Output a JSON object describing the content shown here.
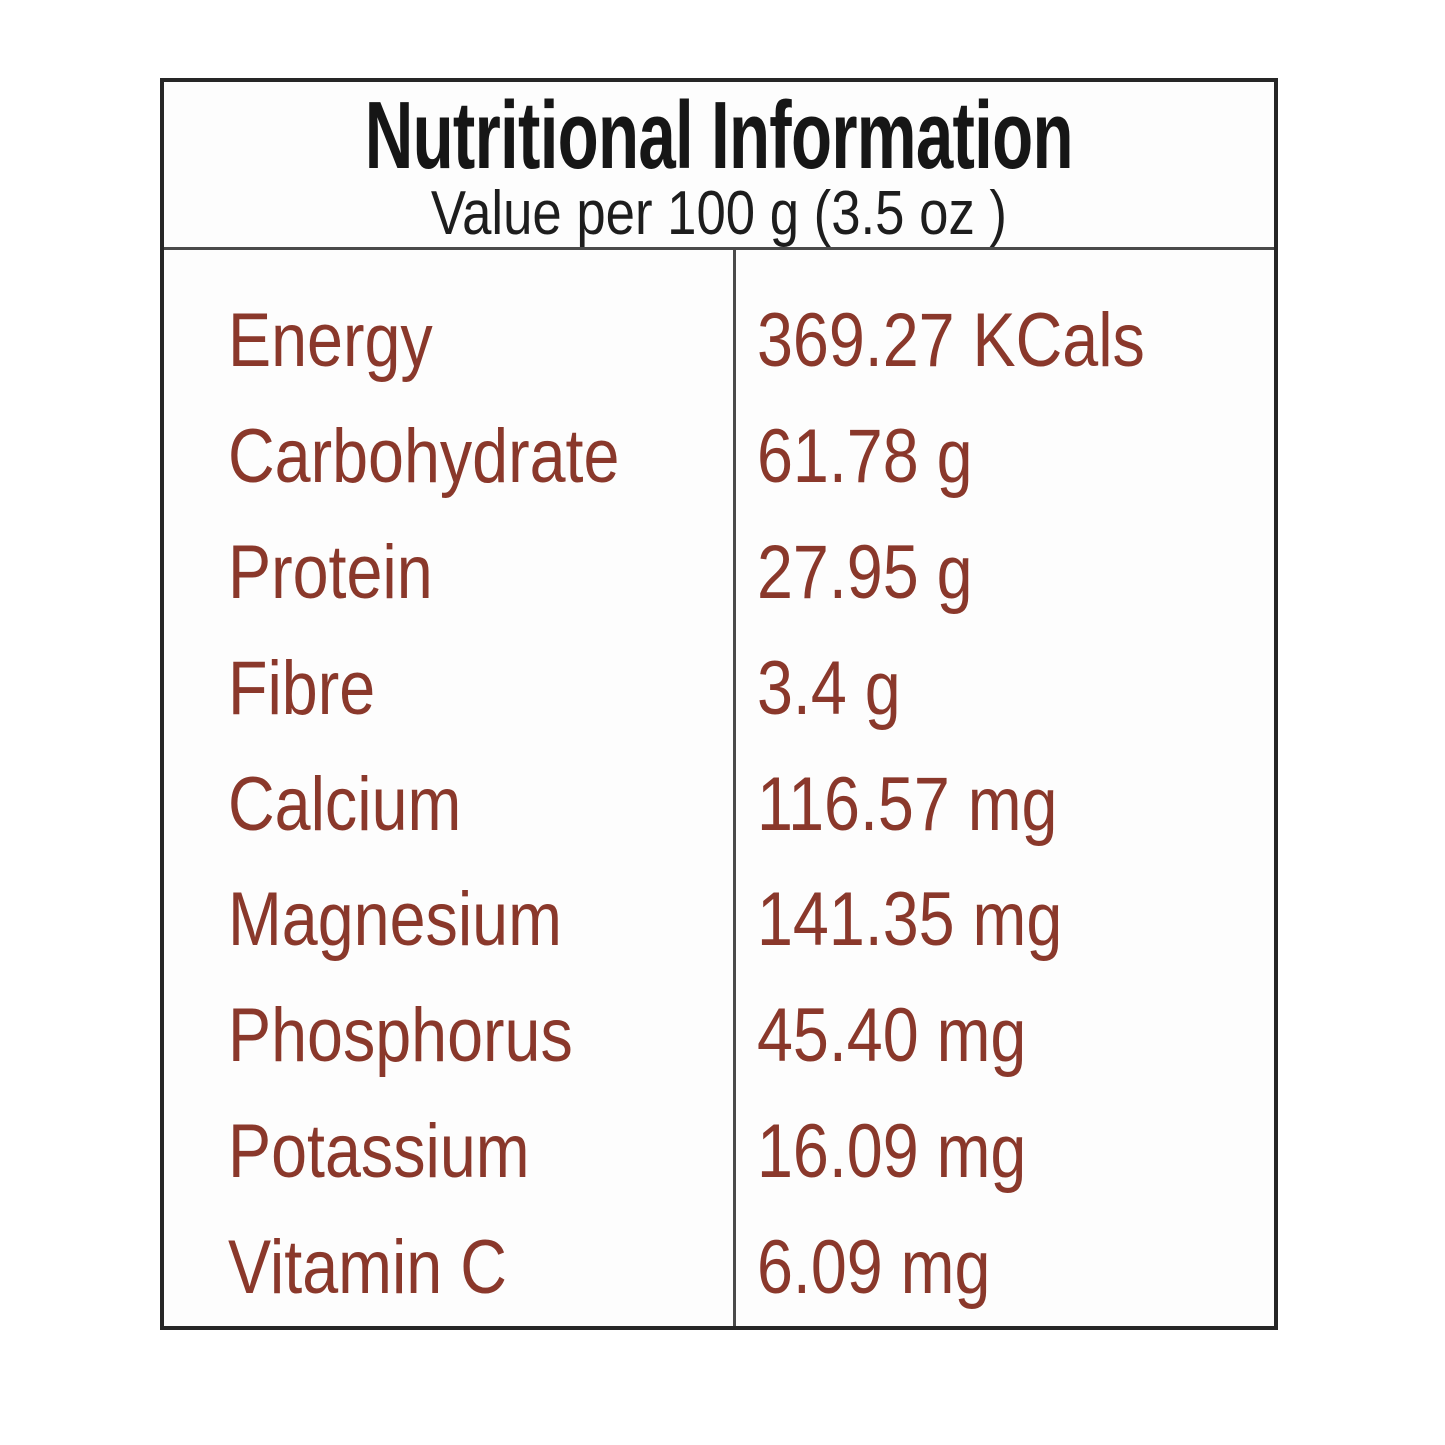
{
  "header": {
    "title": "Nutritional Information",
    "subtitle": "Value per 100 g (3.5 oz )"
  },
  "table": {
    "rows": [
      {
        "label": "Energy",
        "value": "369.27 KCals"
      },
      {
        "label": "Carbohydrate",
        "value": "61.78 g"
      },
      {
        "label": "Protein",
        "value": "27.95 g"
      },
      {
        "label": "Fibre",
        "value": "3.4 g"
      },
      {
        "label": "Calcium",
        "value": "116.57 mg"
      },
      {
        "label": "Magnesium",
        "value": "141.35 mg"
      },
      {
        "label": "Phosphorus",
        "value": "45.40 mg"
      },
      {
        "label": "Potassium",
        "value": "16.09 mg"
      },
      {
        "label": "Vitamin C",
        "value": "6.09 mg"
      }
    ]
  },
  "colors": {
    "nutrient_text": "#8a382b",
    "heading_text": "#161616",
    "border": "#262626",
    "divider": "#4a4a4a",
    "background": "#ffffff"
  }
}
